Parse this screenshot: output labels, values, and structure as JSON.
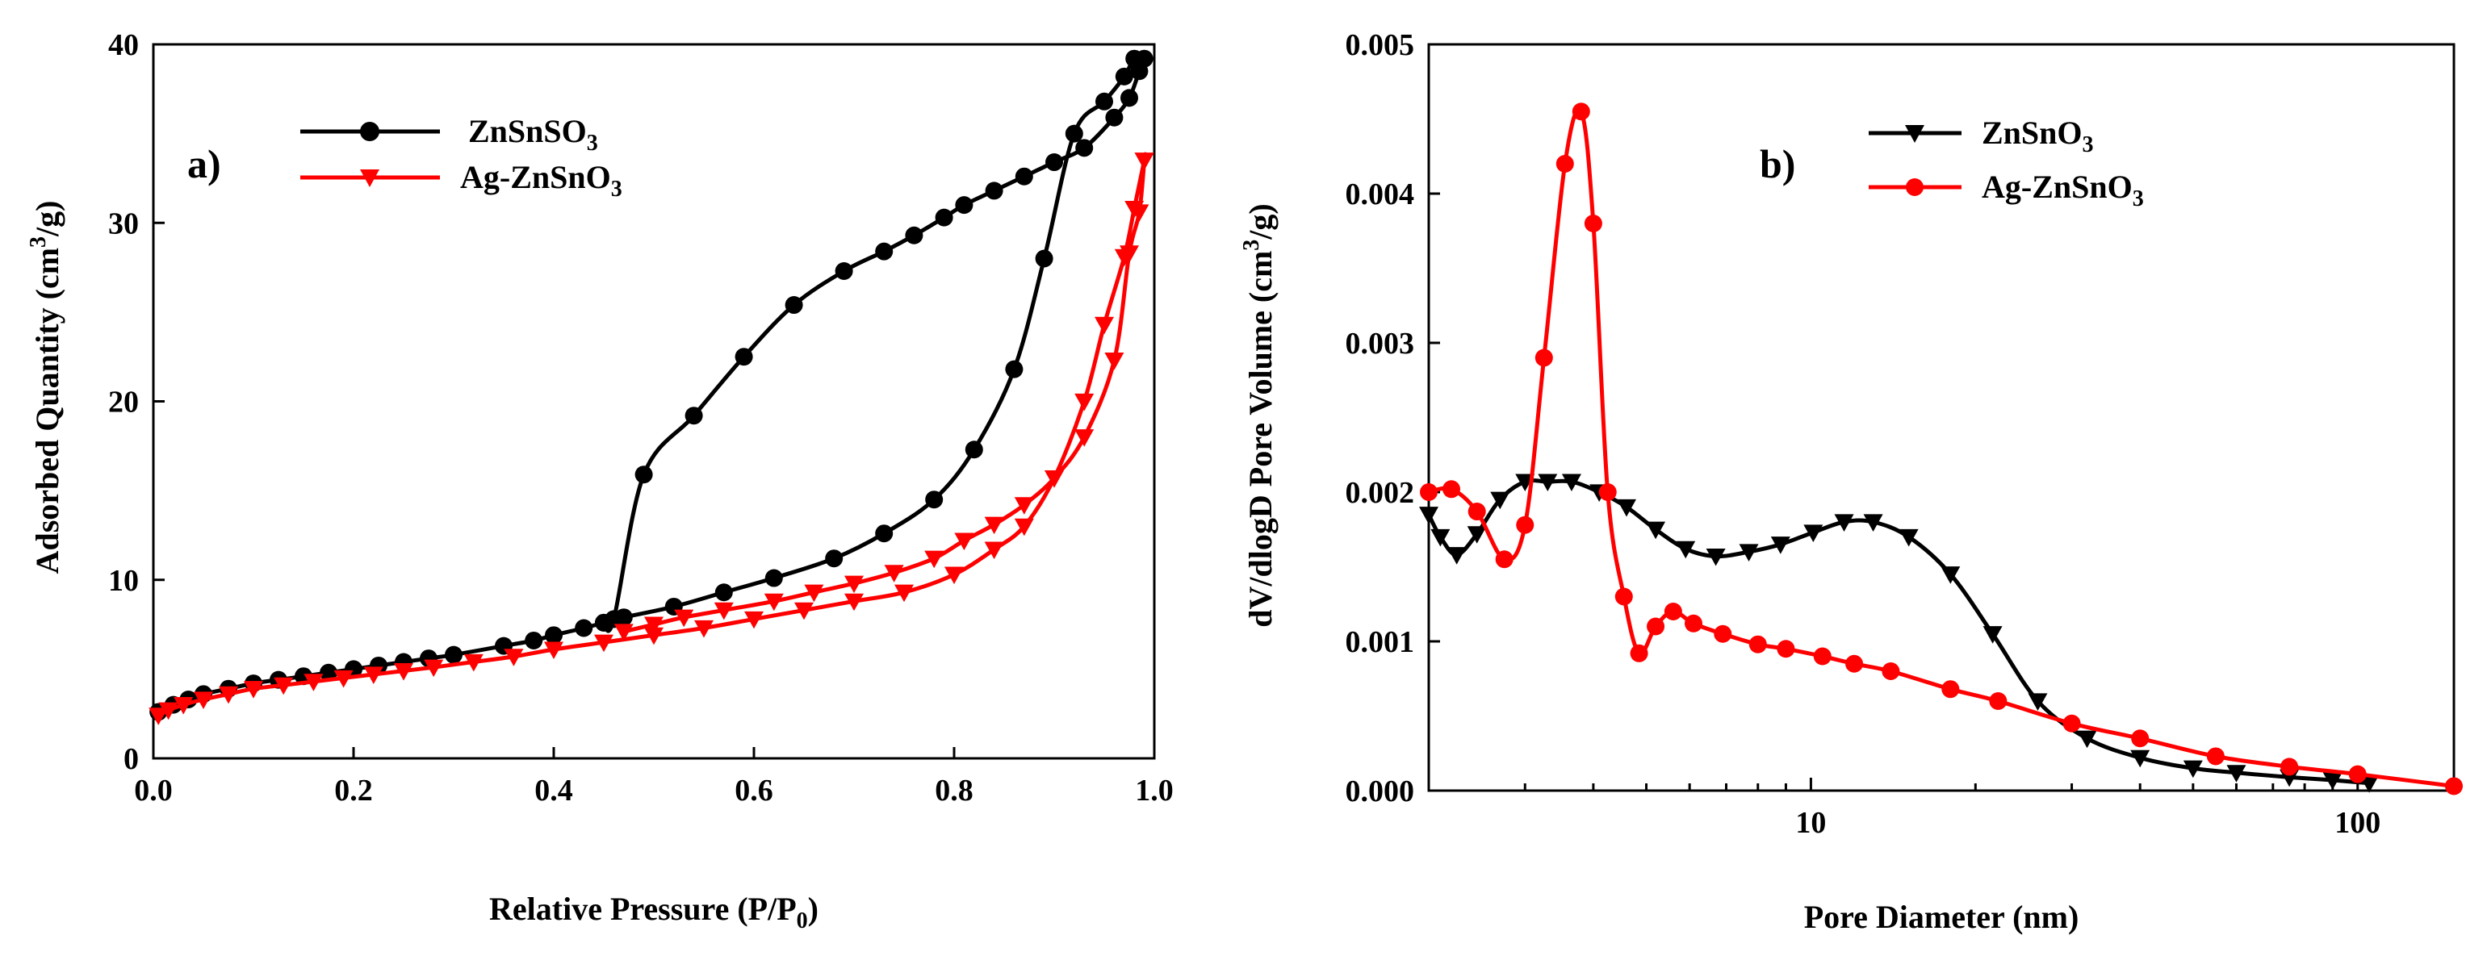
{
  "chart_data": [
    {
      "type": "line",
      "panel_label": "a)",
      "xlabel": "Relative Pressure (P/P",
      "xlabel_sub": "0",
      "xlabel_end": ")",
      "ylabel": "Adsorbed Quantity (cm",
      "ylabel_sup": "3",
      "ylabel_end": "/g)",
      "xlim": [
        0.0,
        1.0
      ],
      "ylim": [
        0,
        40
      ],
      "xticks": [
        "0.0",
        "0.2",
        "0.4",
        "0.6",
        "0.8",
        "1.0"
      ],
      "xtick_values": [
        0.0,
        0.2,
        0.4,
        0.6,
        0.8,
        1.0
      ],
      "yticks": [
        "0",
        "10",
        "20",
        "30",
        "40"
      ],
      "ytick_values": [
        0,
        10,
        20,
        30,
        40
      ],
      "legend_position": "top-left",
      "series": [
        {
          "name": "ZnSnSO",
          "name_sub": "3",
          "color": "#000000",
          "marker": "circle",
          "x": [
            0.005,
            0.02,
            0.035,
            0.05,
            0.075,
            0.1,
            0.125,
            0.15,
            0.175,
            0.2,
            0.225,
            0.25,
            0.275,
            0.3,
            0.35,
            0.38,
            0.4,
            0.43,
            0.45,
            0.47,
            0.52,
            0.57,
            0.62,
            0.68,
            0.73,
            0.78,
            0.82,
            0.86,
            0.89,
            0.92,
            0.95,
            0.97,
            0.98,
            0.99,
            0.985,
            0.975,
            0.96,
            0.93,
            0.9,
            0.87,
            0.84,
            0.81,
            0.79,
            0.76,
            0.73,
            0.69,
            0.64,
            0.59,
            0.54,
            0.49,
            0.46,
            0.45
          ],
          "y": [
            2.6,
            3.0,
            3.3,
            3.6,
            3.9,
            4.2,
            4.4,
            4.6,
            4.8,
            5.0,
            5.2,
            5.4,
            5.6,
            5.8,
            6.3,
            6.6,
            6.9,
            7.3,
            7.6,
            7.9,
            8.5,
            9.3,
            10.1,
            11.2,
            12.6,
            14.5,
            17.3,
            21.8,
            28.0,
            35.0,
            36.8,
            38.2,
            39.2,
            39.2,
            38.5,
            37.0,
            35.9,
            34.2,
            33.4,
            32.6,
            31.8,
            31.0,
            30.3,
            29.3,
            28.4,
            27.3,
            25.4,
            22.5,
            19.2,
            15.9,
            7.8,
            7.6
          ]
        },
        {
          "name": "Ag-ZnSnO",
          "name_sub": "3",
          "color": "#ff0000",
          "marker": "triangle-down",
          "x": [
            0.005,
            0.015,
            0.03,
            0.05,
            0.075,
            0.1,
            0.13,
            0.16,
            0.19,
            0.22,
            0.25,
            0.28,
            0.32,
            0.36,
            0.4,
            0.45,
            0.5,
            0.55,
            0.6,
            0.65,
            0.7,
            0.75,
            0.8,
            0.84,
            0.87,
            0.9,
            0.93,
            0.95,
            0.97,
            0.98,
            0.99,
            0.99,
            0.985,
            0.975,
            0.96,
            0.93,
            0.9,
            0.87,
            0.84,
            0.81,
            0.78,
            0.74,
            0.7,
            0.66,
            0.62,
            0.57,
            0.53,
            0.5,
            0.47
          ],
          "y": [
            2.4,
            2.7,
            3.0,
            3.3,
            3.6,
            3.9,
            4.1,
            4.3,
            4.5,
            4.7,
            4.9,
            5.1,
            5.4,
            5.7,
            6.1,
            6.5,
            6.9,
            7.3,
            7.8,
            8.3,
            8.8,
            9.3,
            10.3,
            11.7,
            13.0,
            15.7,
            20.0,
            24.3,
            28.1,
            30.8,
            33.5,
            33.5,
            30.6,
            28.3,
            22.3,
            18.0,
            15.7,
            14.2,
            13.1,
            12.2,
            11.2,
            10.4,
            9.8,
            9.3,
            8.8,
            8.3,
            7.9,
            7.5,
            7.1
          ]
        }
      ]
    },
    {
      "type": "line",
      "panel_label": "b)",
      "xlabel": "Pore Diameter (nm)",
      "ylabel": "dV/dlogD Pore Volume (cm",
      "ylabel_sup": "3",
      "ylabel_end": "/g)",
      "xscale": "log",
      "xlim": [
        2.0,
        150.0
      ],
      "ylim": [
        0.0,
        0.005
      ],
      "xticks": [
        "10",
        "100"
      ],
      "xtick_values": [
        10,
        100
      ],
      "yticks": [
        "0.000",
        "0.001",
        "0.002",
        "0.003",
        "0.004",
        "0.005"
      ],
      "ytick_values": [
        0.0,
        0.001,
        0.002,
        0.003,
        0.004,
        0.005
      ],
      "legend_position": "top-right",
      "series": [
        {
          "name": "ZnSnO",
          "name_sub": "3",
          "color": "#000000",
          "marker": "triangle-down",
          "x": [
            2.0,
            2.1,
            2.25,
            2.45,
            2.7,
            3.0,
            3.3,
            3.65,
            4.1,
            4.6,
            5.2,
            5.9,
            6.7,
            7.7,
            8.8,
            10.1,
            11.5,
            13.0,
            15.1,
            18.0,
            21.5,
            26.0,
            32.0,
            40.0,
            50.0,
            60.0,
            75.0,
            90.0,
            105.0
          ],
          "y": [
            0.00185,
            0.0017,
            0.00158,
            0.00172,
            0.00195,
            0.00207,
            0.00207,
            0.00207,
            0.002,
            0.0019,
            0.00175,
            0.00162,
            0.00157,
            0.0016,
            0.00165,
            0.00173,
            0.0018,
            0.0018,
            0.0017,
            0.00145,
            0.00105,
            0.0006,
            0.00035,
            0.00022,
            0.00015,
            0.00012,
            9e-05,
            7e-05,
            5e-05
          ]
        },
        {
          "name": "Ag-ZnSnO",
          "name_sub": "3",
          "color": "#ff0000",
          "marker": "circle",
          "x": [
            2.0,
            2.2,
            2.45,
            2.75,
            3.0,
            3.25,
            3.55,
            3.8,
            4.0,
            4.25,
            4.55,
            4.85,
            5.2,
            5.6,
            6.1,
            6.9,
            8.0,
            9.0,
            10.5,
            12.0,
            14.0,
            18.0,
            22.0,
            30.0,
            40.0,
            55.0,
            75.0,
            100.0,
            150.0
          ],
          "y": [
            0.002,
            0.00202,
            0.00187,
            0.00155,
            0.00178,
            0.0029,
            0.0042,
            0.00455,
            0.0038,
            0.002,
            0.0013,
            0.00092,
            0.0011,
            0.0012,
            0.00112,
            0.00105,
            0.00098,
            0.00095,
            0.0009,
            0.00085,
            0.0008,
            0.00068,
            0.0006,
            0.00045,
            0.00035,
            0.00023,
            0.00016,
            0.00011,
            3e-05
          ]
        }
      ]
    }
  ]
}
